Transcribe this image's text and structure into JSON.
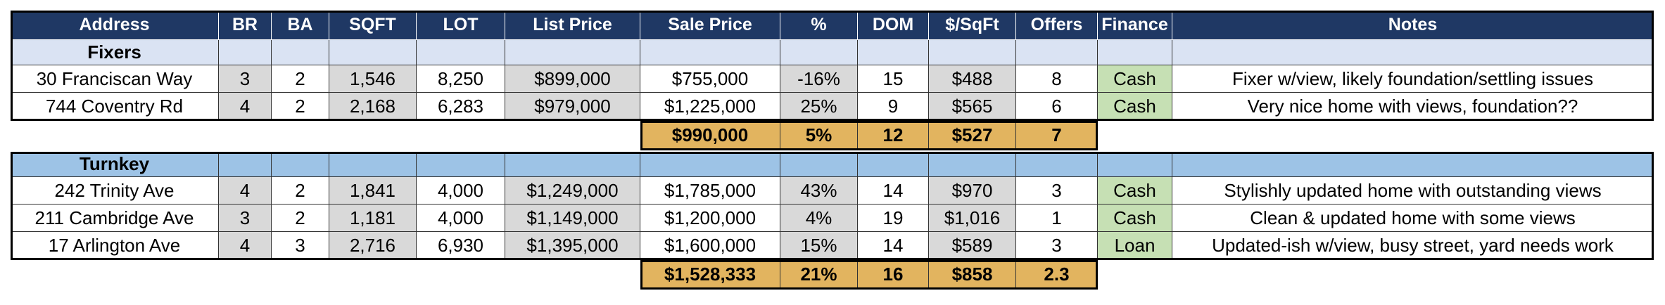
{
  "table": {
    "columns": [
      "Address",
      "BR",
      "BA",
      "SQFT",
      "LOT",
      "List Price",
      "Sale Price",
      "%",
      "DOM",
      "$/SqFt",
      "Offers",
      "Finance",
      "Notes"
    ],
    "sections": [
      {
        "title": "Fixers",
        "rows": [
          [
            "30 Franciscan Way",
            "3",
            "2",
            "1,546",
            "8,250",
            "$899,000",
            "$755,000",
            "-16%",
            "15",
            "$488",
            "8",
            "Cash",
            "Fixer w/view, likely foundation/settling issues"
          ],
          [
            "744 Coventry Rd",
            "4",
            "2",
            "2,168",
            "6,283",
            "$979,000",
            "$1,225,000",
            "25%",
            "9",
            "$565",
            "6",
            "Cash",
            "Very nice home with views, foundation??"
          ]
        ],
        "summary": [
          "$990,000",
          "5%",
          "12",
          "$527",
          "7"
        ]
      },
      {
        "title": "Turnkey",
        "rows": [
          [
            "242 Trinity Ave",
            "4",
            "2",
            "1,841",
            "4,000",
            "$1,249,000",
            "$1,785,000",
            "43%",
            "14",
            "$970",
            "3",
            "Cash",
            "Stylishly updated home with outstanding views"
          ],
          [
            "211 Cambridge Ave",
            "3",
            "2",
            "1,181",
            "4,000",
            "$1,149,000",
            "$1,200,000",
            "4%",
            "19",
            "$1,016",
            "1",
            "Cash",
            "Clean & updated home with some views"
          ],
          [
            "17 Arlington Ave",
            "4",
            "3",
            "2,716",
            "6,930",
            "$1,395,000",
            "$1,600,000",
            "15%",
            "14",
            "$589",
            "3",
            "Loan",
            "Updated-ish w/view, busy street, yard needs work"
          ]
        ],
        "summary": [
          "$1,528,333",
          "21%",
          "16",
          "$858",
          "2.3"
        ]
      }
    ]
  }
}
